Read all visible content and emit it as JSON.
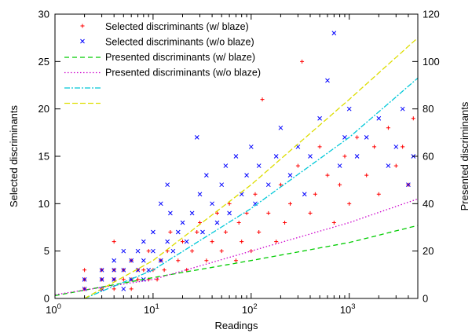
{
  "chart_data": {
    "type": "scatter",
    "xlabel": "Readings",
    "ylabel": "Selected discriminants",
    "y2label": "Presented discriminants",
    "xscale": "log",
    "xlim": [
      1,
      5000
    ],
    "ylim": [
      0,
      30
    ],
    "y2lim": [
      0,
      120
    ],
    "x_ticks": [
      {
        "value": 1,
        "base": "10",
        "exp": "0"
      },
      {
        "value": 10,
        "base": "10",
        "exp": "1"
      },
      {
        "value": 100,
        "base": "10",
        "exp": "2"
      },
      {
        "value": 1000,
        "base": "10",
        "exp": "3"
      }
    ],
    "y_ticks": [
      0,
      5,
      10,
      15,
      20,
      25,
      30
    ],
    "y2_ticks": [
      0,
      20,
      40,
      60,
      80,
      100,
      120
    ],
    "grid": false,
    "legend_position": "top-left",
    "series": [
      {
        "name": "Selected discriminants (w/ blaze)",
        "kind": "scatter",
        "marker": "plus",
        "color": "#ff0000",
        "axis": "left",
        "points": [
          [
            2,
            1
          ],
          [
            2,
            2
          ],
          [
            2,
            3
          ],
          [
            3,
            1
          ],
          [
            3,
            2
          ],
          [
            3,
            3
          ],
          [
            4,
            1
          ],
          [
            4,
            2
          ],
          [
            4,
            3
          ],
          [
            4,
            6
          ],
          [
            5,
            2
          ],
          [
            5,
            3
          ],
          [
            6,
            1
          ],
          [
            6,
            2
          ],
          [
            6,
            4
          ],
          [
            7,
            2
          ],
          [
            7,
            3
          ],
          [
            8,
            3
          ],
          [
            9,
            2
          ],
          [
            9,
            5
          ],
          [
            10,
            3
          ],
          [
            11,
            2
          ],
          [
            12,
            4
          ],
          [
            13,
            3
          ],
          [
            14,
            5
          ],
          [
            15,
            7
          ],
          [
            18,
            4
          ],
          [
            20,
            6
          ],
          [
            22,
            3
          ],
          [
            25,
            5
          ],
          [
            28,
            7
          ],
          [
            30,
            8
          ],
          [
            35,
            4
          ],
          [
            40,
            6
          ],
          [
            45,
            9
          ],
          [
            50,
            5
          ],
          [
            55,
            7
          ],
          [
            60,
            10
          ],
          [
            70,
            4
          ],
          [
            75,
            8
          ],
          [
            80,
            6
          ],
          [
            90,
            9
          ],
          [
            100,
            5
          ],
          [
            110,
            11
          ],
          [
            120,
            7
          ],
          [
            130,
            21
          ],
          [
            150,
            9
          ],
          [
            180,
            6
          ],
          [
            200,
            12
          ],
          [
            220,
            8
          ],
          [
            250,
            10
          ],
          [
            300,
            14
          ],
          [
            330,
            25
          ],
          [
            400,
            9
          ],
          [
            450,
            11
          ],
          [
            500,
            16
          ],
          [
            600,
            13
          ],
          [
            700,
            8
          ],
          [
            800,
            12
          ],
          [
            900,
            15
          ],
          [
            1000,
            10
          ],
          [
            1200,
            17
          ],
          [
            1500,
            13
          ],
          [
            1800,
            16
          ],
          [
            2000,
            11
          ],
          [
            2500,
            18
          ],
          [
            3000,
            14
          ],
          [
            3500,
            16
          ],
          [
            4000,
            12
          ],
          [
            4500,
            19
          ]
        ]
      },
      {
        "name": "Selected discriminants (w/o blaze)",
        "kind": "scatter",
        "marker": "cross",
        "color": "#0000ff",
        "axis": "left",
        "points": [
          [
            2,
            1
          ],
          [
            2,
            2
          ],
          [
            3,
            1
          ],
          [
            3,
            2
          ],
          [
            3,
            3
          ],
          [
            4,
            2
          ],
          [
            4,
            3
          ],
          [
            4,
            4
          ],
          [
            5,
            1
          ],
          [
            5,
            3
          ],
          [
            5,
            5
          ],
          [
            6,
            2
          ],
          [
            6,
            4
          ],
          [
            7,
            3
          ],
          [
            7,
            5
          ],
          [
            8,
            2
          ],
          [
            8,
            4
          ],
          [
            8,
            6
          ],
          [
            9,
            3
          ],
          [
            10,
            5
          ],
          [
            10,
            7
          ],
          [
            12,
            4
          ],
          [
            12,
            10
          ],
          [
            14,
            6
          ],
          [
            14,
            12
          ],
          [
            15,
            9
          ],
          [
            16,
            5
          ],
          [
            18,
            7
          ],
          [
            20,
            8
          ],
          [
            22,
            6
          ],
          [
            25,
            9
          ],
          [
            28,
            17
          ],
          [
            30,
            11
          ],
          [
            32,
            7
          ],
          [
            35,
            13
          ],
          [
            40,
            10
          ],
          [
            45,
            8
          ],
          [
            50,
            12
          ],
          [
            55,
            14
          ],
          [
            60,
            9
          ],
          [
            70,
            15
          ],
          [
            80,
            11
          ],
          [
            90,
            13
          ],
          [
            100,
            16
          ],
          [
            110,
            10
          ],
          [
            120,
            14
          ],
          [
            150,
            12
          ],
          [
            180,
            15
          ],
          [
            200,
            18
          ],
          [
            250,
            13
          ],
          [
            300,
            16
          ],
          [
            350,
            11
          ],
          [
            400,
            15
          ],
          [
            500,
            19
          ],
          [
            600,
            23
          ],
          [
            700,
            28
          ],
          [
            800,
            14
          ],
          [
            900,
            17
          ],
          [
            1000,
            20
          ],
          [
            1200,
            15
          ],
          [
            1500,
            17
          ],
          [
            2000,
            19
          ],
          [
            2500,
            14
          ],
          [
            3000,
            16
          ],
          [
            3500,
            20
          ],
          [
            4000,
            12
          ],
          [
            4500,
            15
          ]
        ]
      },
      {
        "name": "Presented discriminants (w/ blaze)",
        "kind": "line",
        "dash": "6,4",
        "color": "#00cc00",
        "axis": "left",
        "points": [
          [
            1,
            0.3
          ],
          [
            10,
            2.2
          ],
          [
            100,
            4.0
          ],
          [
            1000,
            5.9
          ],
          [
            5000,
            7.7
          ]
        ]
      },
      {
        "name": "Presented discriminants (w/o blaze)",
        "kind": "line",
        "dash": "1.5,2.5",
        "color": "#cc00cc",
        "axis": "left",
        "points": [
          [
            1,
            0.4
          ],
          [
            10,
            2.0
          ],
          [
            100,
            5.0
          ],
          [
            1000,
            8.0
          ],
          [
            5000,
            10.5
          ]
        ]
      },
      {
        "name": "",
        "kind": "line",
        "dash": "7,2,2,2",
        "color": "#00c8d8",
        "axis": "right",
        "points": [
          [
            2,
            0
          ],
          [
            10,
            12
          ],
          [
            100,
            38
          ],
          [
            1000,
            68
          ],
          [
            5000,
            93
          ]
        ]
      },
      {
        "name": "",
        "kind": "line",
        "dash": "7,3",
        "color": "#dddd00",
        "axis": "right",
        "points": [
          [
            2,
            0
          ],
          [
            10,
            16
          ],
          [
            100,
            48
          ],
          [
            1000,
            84
          ],
          [
            5000,
            110
          ]
        ]
      }
    ]
  }
}
